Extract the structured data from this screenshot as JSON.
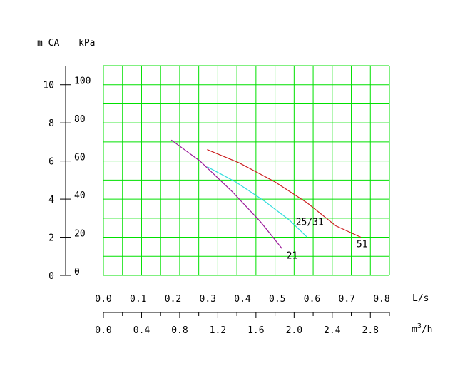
{
  "chart_data": {
    "type": "line",
    "title": "",
    "left_axis": {
      "unit_label": "m CA",
      "ticks": [
        0,
        2,
        4,
        6,
        8,
        10
      ],
      "range": [
        0,
        11
      ]
    },
    "kpa_axis": {
      "unit_label": "kPa",
      "ticks": [
        0,
        20,
        40,
        60,
        80,
        100
      ],
      "range": [
        0,
        110
      ]
    },
    "flow_axis_ls": {
      "unit_label": "L/s",
      "ticks": [
        "0.0",
        "0.1",
        "0.2",
        "0.3",
        "0.4",
        "0.5",
        "0.6",
        "0.7",
        "0.8"
      ],
      "range": [
        0,
        0.8
      ]
    },
    "flow_axis_m3h": {
      "unit_label": "m³/h",
      "unit_base": "m",
      "unit_exponent": "3",
      "unit_suffix": "/h",
      "ticks": [
        "0.0",
        "0.4",
        "0.8",
        "1.2",
        "1.6",
        "2.0",
        "2.4",
        "2.8"
      ]
    },
    "grid": true,
    "grid_color": "#00e000",
    "series": [
      {
        "name": "21",
        "color": "#9a1a9a",
        "points": [
          [
            0.19,
            7.1
          ],
          [
            0.27,
            6.0
          ],
          [
            0.36,
            4.4
          ],
          [
            0.44,
            2.8
          ],
          [
            0.5,
            1.4
          ]
        ]
      },
      {
        "name": "25/31",
        "color": "#33dddd",
        "points": [
          [
            0.29,
            5.7
          ],
          [
            0.37,
            4.9
          ],
          [
            0.45,
            3.9
          ],
          [
            0.52,
            2.9
          ],
          [
            0.57,
            2.0
          ]
        ]
      },
      {
        "name": "51",
        "color": "#cc2222",
        "points": [
          [
            0.29,
            6.6
          ],
          [
            0.38,
            5.9
          ],
          [
            0.48,
            4.9
          ],
          [
            0.57,
            3.8
          ],
          [
            0.65,
            2.6
          ],
          [
            0.72,
            2.0
          ]
        ]
      }
    ]
  }
}
